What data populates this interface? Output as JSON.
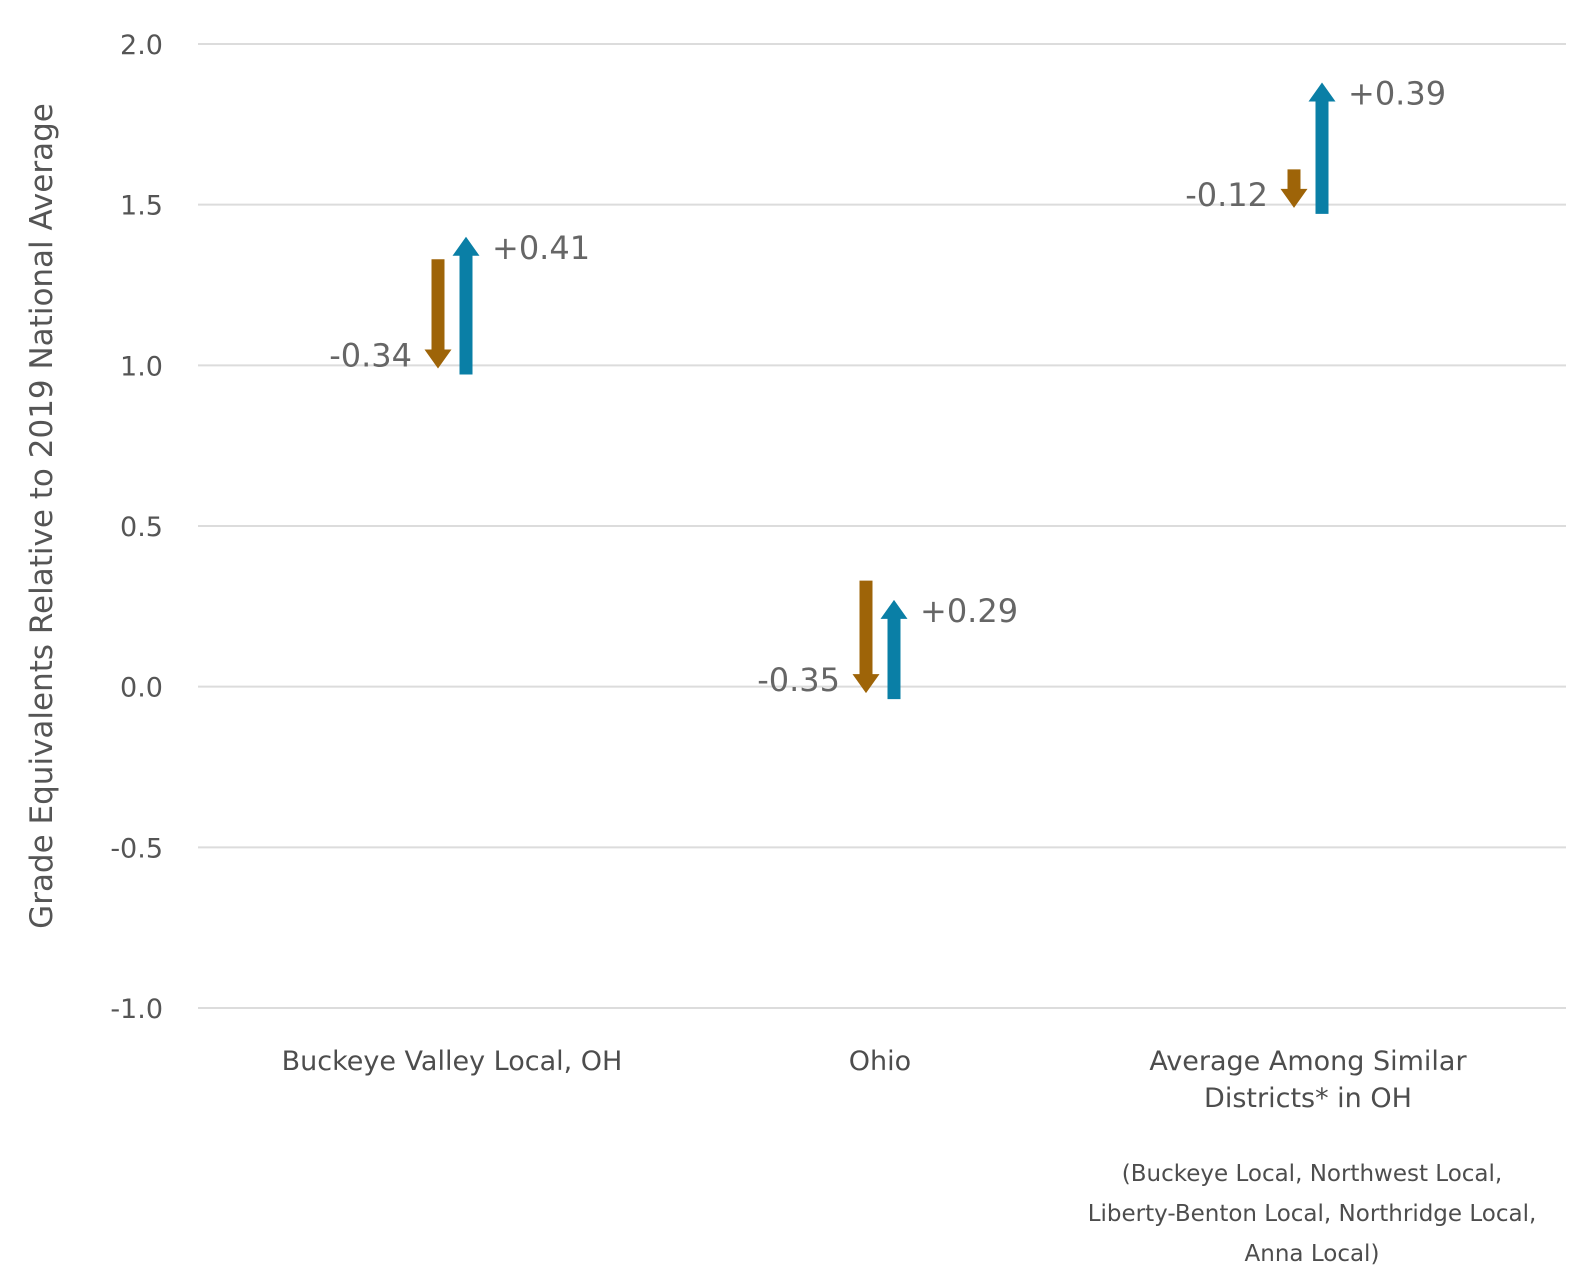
{
  "chart_data": {
    "type": "arrow-change",
    "ylabel": "Grade Equivalents Relative to 2019 National Average",
    "yticks": [
      "2.0",
      "1.5",
      "1.0",
      "0.5",
      "0.0",
      "-0.5",
      "-1.0"
    ],
    "ylim": [
      -1.0,
      2.0
    ],
    "grid": true,
    "colors": {
      "decline": "#9E6408",
      "rebound": "#0A7FA6"
    },
    "categories": [
      {
        "label_lines": [
          "Buckeye Valley Local, OH"
        ],
        "start": 1.33,
        "decline": -0.34,
        "rebound": 0.41,
        "decline_label": "-0.34",
        "rebound_label": "+0.41"
      },
      {
        "label_lines": [
          "Ohio"
        ],
        "start": 0.33,
        "decline": -0.35,
        "rebound": 0.29,
        "decline_label": "-0.35",
        "rebound_label": "+0.29"
      },
      {
        "label_lines": [
          "Average Among Similar",
          "Districts* in OH"
        ],
        "start": 1.61,
        "decline": -0.12,
        "rebound": 0.39,
        "decline_label": "-0.12",
        "rebound_label": "+0.39"
      }
    ],
    "footnote_lines": [
      "(Buckeye Local, Northwest Local,",
      "Liberty-Benton Local, Northridge Local,",
      "Anna Local)"
    ]
  }
}
